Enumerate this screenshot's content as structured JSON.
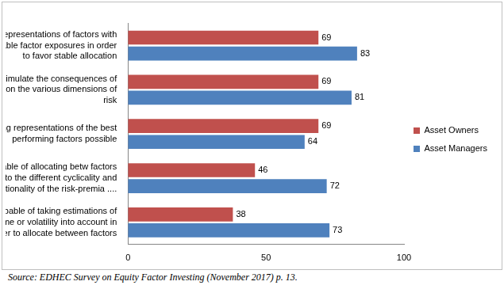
{
  "chart_data": {
    "type": "bar",
    "orientation": "horizontal",
    "categories": [
      "Choosing representations of factors with the most stable factor exposures in order to favor stable allocation",
      "Being able to simulate the consequences of allocations on the various dimensions of risk",
      "Choosing representations of the best performing factors possible",
      "Being capable of allocating betw factors acc to the different cyclicality and conditionality of the risk-premia ....",
      "Being capable of taking estimations of marketregime or volatility into account in order to allocate between factors"
    ],
    "series": [
      {
        "name": "Asset Owners",
        "color": "#c0504d",
        "values": [
          69,
          69,
          69,
          46,
          38
        ]
      },
      {
        "name": "Asset Managers",
        "color": "#4f81bd",
        "values": [
          83,
          81,
          64,
          72,
          73
        ]
      }
    ],
    "xlim": [
      0,
      100
    ],
    "xticks": [
      0,
      50,
      100
    ],
    "grid": false,
    "legend": "right",
    "data_labels": true,
    "source": "Source: EDHEC Survey on Equity Factor Investing (November 2017) p. 13."
  }
}
